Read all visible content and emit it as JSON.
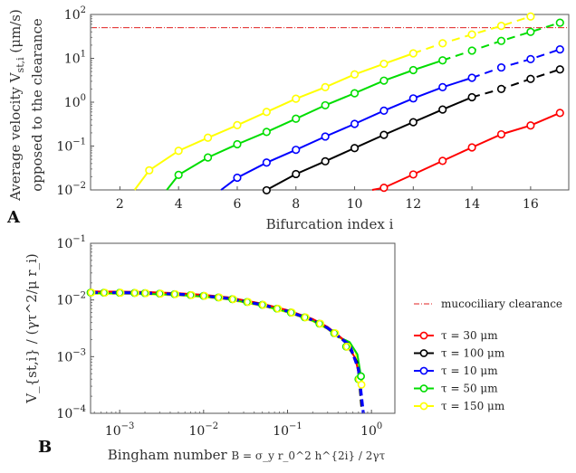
{
  "chart_data": [
    {
      "panel": "A",
      "type": "line",
      "xlabel": "Bifurcation index i",
      "ylabel_line1": "Average velocity V",
      "ylabel_sub": "st,i",
      "ylabel_unit": " (μm/s)",
      "ylabel_line2": "opposed to the clearance",
      "xlim": [
        1,
        17.3
      ],
      "ylim": [
        0.01,
        100
      ],
      "yscale": "log",
      "xticks": [
        2,
        4,
        6,
        8,
        10,
        12,
        14,
        16
      ],
      "yticks": [
        {
          "value": 0.01,
          "base": "10",
          "exp": "−2"
        },
        {
          "value": 0.1,
          "base": "10",
          "exp": "−1"
        },
        {
          "value": 1,
          "base": "10",
          "exp": "0"
        },
        {
          "value": 10,
          "base": "10",
          "exp": "1"
        },
        {
          "value": 100,
          "base": "10",
          "exp": "2"
        }
      ],
      "clearance_line": {
        "value": 50,
        "color": "#e02020"
      },
      "series": [
        {
          "name": "τ = 30 μm",
          "color": "#ff0000",
          "start_x": 10.6,
          "start_y": 0.0083,
          "solid_to": 17,
          "x": [
            11,
            12,
            13,
            14,
            15,
            16,
            17
          ],
          "y": [
            0.0112,
            0.0225,
            0.046,
            0.093,
            0.185,
            0.295,
            0.57
          ]
        },
        {
          "name": "τ = 100 μm",
          "color": "#000000",
          "start_x": 7,
          "start_y": 0.0098,
          "solid_to": 14,
          "x": [
            7,
            8,
            9,
            10,
            11,
            12,
            13,
            14,
            15,
            16,
            17
          ],
          "y": [
            0.0098,
            0.023,
            0.045,
            0.09,
            0.18,
            0.35,
            0.68,
            1.3,
            2.0,
            3.4,
            5.6
          ]
        },
        {
          "name": "τ = 10 μm",
          "color": "#0000ff",
          "start_x": 5.45,
          "start_y": 0.0095,
          "solid_to": 14,
          "x": [
            6,
            7,
            8,
            9,
            10,
            11,
            12,
            13,
            14,
            15,
            16,
            17
          ],
          "y": [
            0.019,
            0.042,
            0.082,
            0.165,
            0.32,
            0.64,
            1.22,
            2.2,
            3.6,
            6.2,
            9.6,
            16
          ]
        },
        {
          "name": "τ = 50 μm",
          "color": "#00dd00",
          "start_x": 3.6,
          "start_y": 0.0095,
          "solid_to": 13,
          "x": [
            4,
            5,
            6,
            7,
            8,
            9,
            10,
            11,
            12,
            13,
            14,
            15,
            16,
            17
          ],
          "y": [
            0.022,
            0.055,
            0.11,
            0.21,
            0.42,
            0.85,
            1.6,
            3.1,
            5.4,
            9.0,
            15,
            25,
            40,
            65
          ]
        },
        {
          "name": "τ = 150 μm",
          "color": "#ffff00",
          "start_x": 2.5,
          "start_y": 0.0095,
          "solid_to": 12,
          "x": [
            3,
            4,
            5,
            6,
            7,
            8,
            9,
            10,
            11,
            12,
            13,
            14,
            15,
            16
          ],
          "y": [
            0.028,
            0.078,
            0.155,
            0.3,
            0.6,
            1.2,
            2.2,
            4.3,
            7.5,
            13,
            22,
            35,
            55,
            90
          ]
        }
      ]
    },
    {
      "panel": "B",
      "type": "line",
      "xlabel_prefix": "Bingham number ",
      "xlabel_formula": "B = σ_y r_0^2 h^{2i} / 2γτ",
      "ylabel": "V_{st,i} / (γτ^2/μ r_i)",
      "xscale": "log",
      "yscale": "log",
      "xlim": [
        0.00045,
        1.9
      ],
      "ylim": [
        0.0001,
        0.1
      ],
      "xticks": [
        {
          "value": 0.001,
          "base": "10",
          "exp": "−3"
        },
        {
          "value": 0.01,
          "base": "10",
          "exp": "−2"
        },
        {
          "value": 0.1,
          "base": "10",
          "exp": "−1"
        },
        {
          "value": 1,
          "base": "10",
          "exp": "0"
        }
      ],
      "yticks": [
        {
          "value": 0.0001,
          "base": "10",
          "exp": "−4"
        },
        {
          "value": 0.001,
          "base": "10",
          "exp": "−3"
        },
        {
          "value": 0.01,
          "base": "10",
          "exp": "−2"
        },
        {
          "value": 0.1,
          "base": "10",
          "exp": "−1"
        }
      ],
      "curve": {
        "x": [
          0.00045,
          0.001,
          0.002,
          0.005,
          0.01,
          0.02,
          0.05,
          0.1,
          0.2,
          0.3,
          0.4,
          0.5,
          0.6,
          0.7,
          0.75,
          0.8
        ],
        "y": [
          0.0135,
          0.0134,
          0.0132,
          0.0126,
          0.0118,
          0.0106,
          0.0082,
          0.0063,
          0.0044,
          0.0032,
          0.0023,
          0.0015,
          0.0009,
          0.0004,
          0.0002,
          0.0001
        ]
      },
      "series": [
        {
          "name": "τ = 30 μm",
          "color": "#ff0000",
          "tail": [
            [
              0.5,
              0.0018
            ],
            [
              0.65,
              0.0009
            ],
            [
              0.75,
              0.0003
            ]
          ]
        },
        {
          "name": "τ = 100 μm",
          "color": "#000000",
          "tail": [
            [
              0.5,
              0.0017
            ],
            [
              0.68,
              0.0008
            ],
            [
              0.76,
              0.00012
            ]
          ]
        },
        {
          "name": "τ = 10 μm",
          "color": "#0000ff",
          "tail": [
            [
              0.55,
              0.0016
            ],
            [
              0.7,
              0.0006
            ],
            [
              0.8,
              0.0001
            ]
          ]
        },
        {
          "name": "τ = 50 μm",
          "color": "#00dd00",
          "tail": [
            [
              0.55,
              0.0018
            ],
            [
              0.68,
              0.0011
            ],
            [
              0.75,
              0.00045
            ]
          ]
        },
        {
          "name": "τ = 150 μm",
          "color": "#ffff00",
          "tail": [
            [
              0.5,
              0.0019
            ],
            [
              0.65,
              0.0012
            ],
            [
              0.76,
              0.00032
            ]
          ]
        }
      ],
      "markers_x": [
        0.00045,
        0.00065,
        0.001,
        0.0015,
        0.002,
        0.003,
        0.0045,
        0.007,
        0.01,
        0.015,
        0.022,
        0.033,
        0.05,
        0.075,
        0.11,
        0.16,
        0.24,
        0.36,
        0.5,
        0.7
      ]
    }
  ],
  "legend": {
    "clearance_label": "mucociliary clearance",
    "items": [
      {
        "label": "τ = 30 μm",
        "color": "#ff0000"
      },
      {
        "label": "τ = 100 μm",
        "color": "#000000"
      },
      {
        "label": "τ = 10 μm",
        "color": "#0000ff"
      },
      {
        "label": "τ = 50 μm",
        "color": "#00dd00"
      },
      {
        "label": "τ = 150 μm",
        "color": "#ffff00"
      }
    ]
  }
}
